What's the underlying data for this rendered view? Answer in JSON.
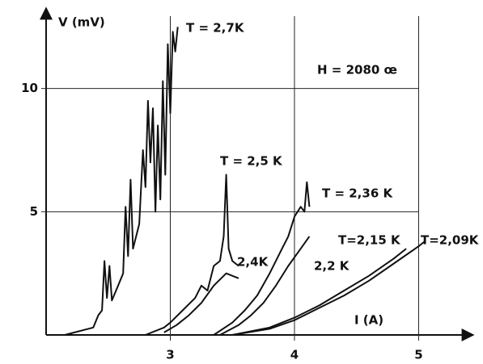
{
  "chart_data": {
    "type": "line",
    "ylabel": "V (mV)",
    "xlabel": "I (A)",
    "annotation": "H = 2080 œ",
    "xlim": [
      2,
      5.44
    ],
    "ylim": [
      0,
      13.1
    ],
    "xticks": [
      3,
      4,
      5
    ],
    "yticks": [
      5,
      10
    ],
    "grid": true,
    "series": [
      {
        "name": "T = 2,7K",
        "color": "#111111",
        "x": [
          2.15,
          2.38,
          2.42,
          2.45,
          2.47,
          2.49,
          2.51,
          2.53,
          2.58,
          2.62,
          2.64,
          2.66,
          2.68,
          2.7,
          2.75,
          2.78,
          2.8,
          2.82,
          2.84,
          2.86,
          2.88,
          2.9,
          2.92,
          2.94,
          2.96,
          2.98,
          3.0,
          3.02,
          3.04,
          3.06
        ],
        "values": [
          0,
          0.3,
          0.8,
          1.0,
          3.0,
          1.5,
          2.8,
          1.4,
          2.0,
          2.5,
          5.2,
          3.2,
          6.3,
          3.5,
          4.5,
          7.5,
          6.0,
          9.5,
          7.0,
          9.2,
          5.0,
          8.5,
          5.5,
          10.3,
          6.5,
          11.8,
          9.0,
          12.3,
          11.5,
          12.5
        ]
      },
      {
        "name": "T = 2,5 K",
        "color": "#111111",
        "x": [
          2.8,
          2.95,
          3.0,
          3.1,
          3.2,
          3.25,
          3.3,
          3.35,
          3.4,
          3.43,
          3.45,
          3.47,
          3.5,
          3.55
        ],
        "values": [
          0,
          0.3,
          0.5,
          1.0,
          1.5,
          2.0,
          1.8,
          2.8,
          3.0,
          4.0,
          6.5,
          3.5,
          3.0,
          2.8
        ]
      },
      {
        "name": "2,4K",
        "color": "#111111",
        "x": [
          2.95,
          3.05,
          3.15,
          3.25,
          3.35,
          3.45,
          3.55
        ],
        "values": [
          0.1,
          0.4,
          0.8,
          1.3,
          2.0,
          2.5,
          2.3
        ]
      },
      {
        "name": "T = 2,36 K",
        "color": "#111111",
        "x": [
          3.35,
          3.5,
          3.6,
          3.7,
          3.8,
          3.9,
          3.95,
          4.0,
          4.05,
          4.08,
          4.1,
          4.12
        ],
        "values": [
          0,
          0.5,
          1.0,
          1.6,
          2.5,
          3.5,
          4.0,
          4.8,
          5.2,
          5.0,
          6.2,
          5.2
        ]
      },
      {
        "name": "2,2 K",
        "color": "#111111",
        "x": [
          3.4,
          3.55,
          3.65,
          3.75,
          3.85,
          3.95,
          4.05,
          4.12
        ],
        "values": [
          0,
          0.4,
          0.8,
          1.3,
          2.0,
          2.8,
          3.5,
          4.0
        ]
      },
      {
        "name": "T=2,15 K",
        "color": "#111111",
        "x": [
          3.5,
          3.8,
          4.0,
          4.2,
          4.4,
          4.6,
          4.8,
          4.9
        ],
        "values": [
          0,
          0.3,
          0.7,
          1.2,
          1.8,
          2.4,
          3.1,
          3.5
        ]
      },
      {
        "name": "T=2,09K",
        "color": "#111111",
        "x": [
          3.5,
          3.8,
          4.0,
          4.2,
          4.4,
          4.6,
          4.8,
          5.0,
          5.05
        ],
        "values": [
          0,
          0.25,
          0.6,
          1.1,
          1.6,
          2.2,
          2.9,
          3.6,
          3.8
        ]
      }
    ]
  }
}
